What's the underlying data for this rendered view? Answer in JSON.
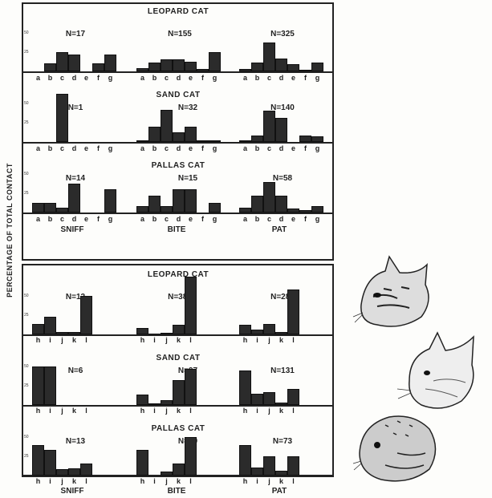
{
  "y_axis_label": "PERCENTAGE OF TOTAL CONTACT",
  "chart_data": {
    "type": "bar",
    "ylabel": "PERCENTAGE OF TOTAL CONTACT",
    "yticks": [
      "25",
      "50"
    ],
    "behaviors": [
      "SNIFF",
      "BITE",
      "PAT"
    ],
    "sections": [
      {
        "categories": [
          "a",
          "b",
          "c",
          "d",
          "e",
          "f",
          "g"
        ],
        "rows": [
          {
            "species": "LEOPARD CAT",
            "panels": [
              {
                "n": "N=17",
                "values": [
                  0,
                  10,
                  25,
                  22,
                  0,
                  10,
                  22
                ]
              },
              {
                "n": "N=155",
                "values": [
                  4,
                  11,
                  16,
                  16,
                  13,
                  3,
                  25
                ]
              },
              {
                "n": "N=325",
                "values": [
                  3,
                  11,
                  38,
                  17,
                  9,
                  2,
                  11
                ]
              }
            ]
          },
          {
            "species": "SAND CAT",
            "panels": [
              {
                "n": "N=1",
                "values": [
                  0,
                  0,
                  100,
                  0,
                  0,
                  0,
                  0
                ]
              },
              {
                "n": "N=32",
                "values": [
                  2,
                  20,
                  42,
                  12,
                  20,
                  2,
                  2
                ]
              },
              {
                "n": "N=140",
                "values": [
                  2,
                  8,
                  41,
                  31,
                  0,
                  8,
                  7
                ]
              }
            ]
          },
          {
            "species": "PALLAS CAT",
            "panels": [
              {
                "n": "N=14",
                "values": [
                  13,
                  13,
                  6,
                  38,
                  0,
                  0,
                  30
                ]
              },
              {
                "n": "N=15",
                "values": [
                  8,
                  22,
                  8,
                  30,
                  30,
                  0,
                  12
                ]
              },
              {
                "n": "N=58",
                "values": [
                  6,
                  22,
                  40,
                  22,
                  5,
                  3,
                  8
                ]
              }
            ]
          }
        ]
      },
      {
        "categories": [
          "h",
          "i",
          "j",
          "k",
          "l"
        ],
        "rows": [
          {
            "species": "LEOPARD CAT",
            "panels": [
              {
                "n": "N=12",
                "values": [
                  14,
                  23,
                  3,
                  3,
                  50
                ]
              },
              {
                "n": "N=380",
                "values": [
                  8,
                  1,
                  2,
                  12,
                  75
                ]
              },
              {
                "n": "N=285",
                "values": [
                  13,
                  6,
                  14,
                  3,
                  58
                ]
              }
            ]
          },
          {
            "species": "SAND CAT",
            "panels": [
              {
                "n": "N=6",
                "values": [
                  50,
                  50,
                  0,
                  0,
                  0
                ]
              },
              {
                "n": "N=97",
                "values": [
                  14,
                  2,
                  6,
                  32,
                  47
                ]
              },
              {
                "n": "N=131",
                "values": [
                  45,
                  15,
                  17,
                  3,
                  21
                ]
              }
            ]
          },
          {
            "species": "PALLAS CAT",
            "panels": [
              {
                "n": "N=13",
                "values": [
                  40,
                  33,
                  8,
                  9,
                  16
                ]
              },
              {
                "n": "N=39",
                "values": [
                  33,
                  0,
                  5,
                  16,
                  50
                ]
              },
              {
                "n": "N=73",
                "values": [
                  40,
                  10,
                  25,
                  6,
                  25
                ]
              }
            ]
          }
        ]
      }
    ]
  },
  "illustrations": [
    "leopard-cat-head-drawing",
    "sand-cat-head-drawing",
    "pallas-cat-head-drawing"
  ]
}
